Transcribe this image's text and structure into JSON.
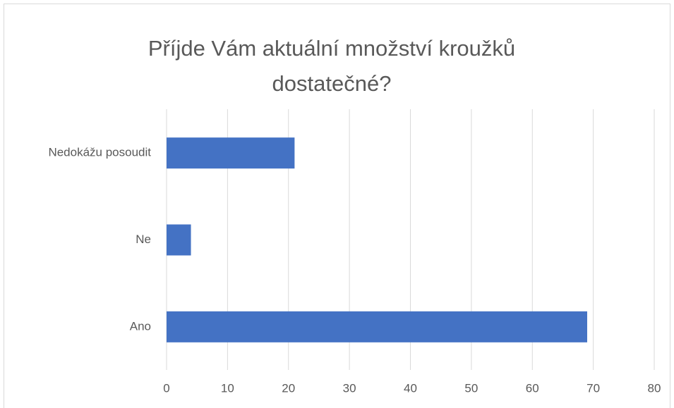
{
  "chart_data": {
    "type": "hbar",
    "title": "Příjde Vám aktuální množství kroužků dostatečné?",
    "categories": [
      "Nedokážu posoudit",
      "Ne",
      "Ano"
    ],
    "values": [
      21,
      4,
      69
    ],
    "color": "#4472c4",
    "xlim": [
      0,
      80
    ],
    "xticks": [
      0,
      10,
      20,
      30,
      40,
      50,
      60,
      70,
      80
    ],
    "grid": true
  }
}
